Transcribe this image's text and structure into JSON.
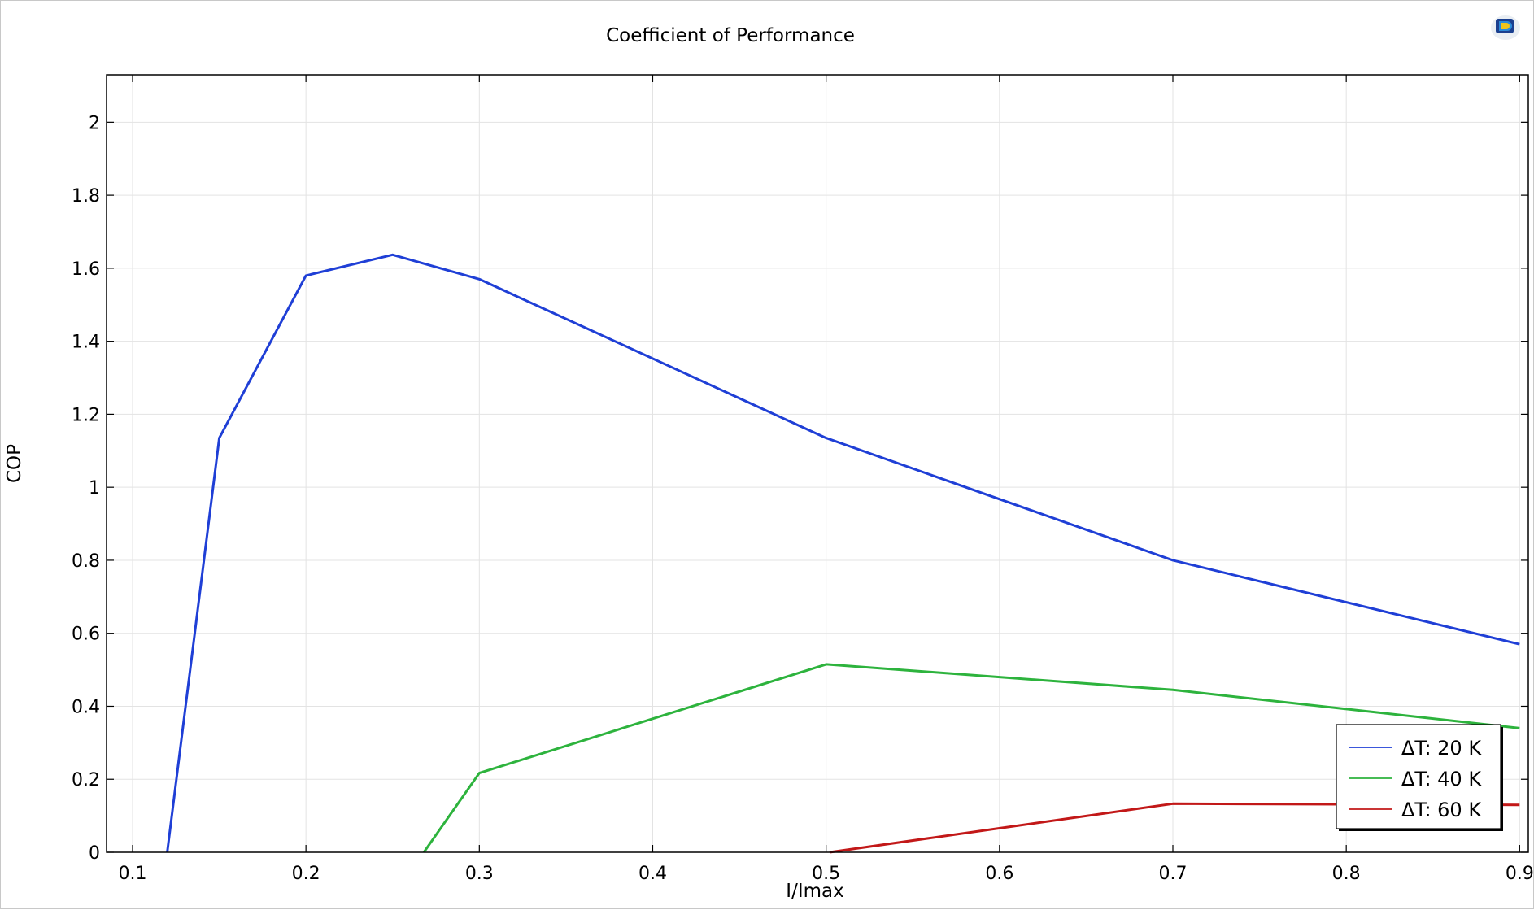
{
  "chart_data": {
    "type": "line",
    "title": "Coefficient of Performance",
    "xlabel": "I/Imax",
    "ylabel": "COP",
    "xlim": [
      0.085,
      0.905
    ],
    "ylim": [
      0,
      2.13
    ],
    "xticks": [
      "0.1",
      "0.2",
      "0.3",
      "0.4",
      "0.5",
      "0.6",
      "0.7",
      "0.8",
      "0.9"
    ],
    "yticks": [
      "0",
      "0.2",
      "0.4",
      "0.6",
      "0.8",
      "1",
      "1.2",
      "1.4",
      "1.6",
      "1.8",
      "2"
    ],
    "grid": true,
    "legend_position": "bottom-right",
    "series": [
      {
        "name": "ΔT: 20 K",
        "color": "#1f3fd6",
        "x": [
          0.12,
          0.15,
          0.2,
          0.25,
          0.3,
          0.5,
          0.7,
          0.9
        ],
        "y": [
          0.0,
          1.135,
          1.58,
          1.637,
          1.57,
          1.135,
          0.8,
          0.57
        ]
      },
      {
        "name": "ΔT: 40 K",
        "color": "#2db33d",
        "x": [
          0.268,
          0.3,
          0.5,
          0.7,
          0.9
        ],
        "y": [
          0.0,
          0.217,
          0.515,
          0.445,
          0.34
        ]
      },
      {
        "name": "ΔT: 60 K",
        "color": "#c21818",
        "x": [
          0.502,
          0.7,
          0.9
        ],
        "y": [
          0.0,
          0.133,
          0.13
        ]
      }
    ]
  },
  "logo": {
    "name": "comsol-logo-icon"
  }
}
